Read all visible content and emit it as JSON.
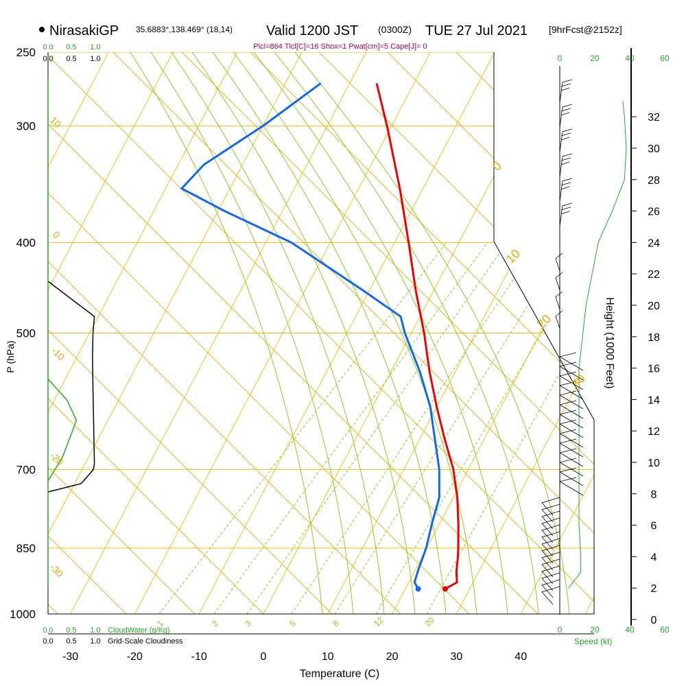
{
  "header": {
    "station": "NirasakiGP",
    "coords": "35.6883°,138.469° (18,14)",
    "valid": "Valid 1200 JST",
    "utc": "(0300Z)",
    "date": "TUE 27 Jul 2021",
    "fcst": "[9hrFcst@2152z]",
    "indices": "Plcl=864 Tlcl[C]=16 Shox=1 Pwat[cm]=5 Cape[J]= 0"
  },
  "colors": {
    "isobar": "#f5b800",
    "dry_adiabat": "#e8a800",
    "moist_adiabat": "#88cc22",
    "mixing_ratio": "#88cc22",
    "temperature": "#ee0000",
    "dewpoint": "#1166ee",
    "cloud_water": "#22aa22",
    "cloudiness": "#000000",
    "header_text": "#000000",
    "indices_text": "#aa0055",
    "green_label": "#22aa22"
  },
  "labels": {
    "cloud_scale_green": [
      "0.0",
      "0.5",
      "1.0"
    ],
    "cloud_scale_black": [
      "0.0",
      "0.5",
      "1.0"
    ],
    "cloudwater": "CloudWater (g/Kg)",
    "cloudiness": "Grid-Scale Cloudiness",
    "speed": "Speed (kt)",
    "speed_ticks": [
      "0",
      "20",
      "40",
      "60"
    ],
    "pressure_axis": "P (hPa)",
    "height_axis": "Height (1000 Feet)",
    "temp_axis": "Temperature (C)"
  },
  "chart_data": {
    "type": "skew-t",
    "pressure_ticks": [
      250,
      300,
      400,
      500,
      700,
      850,
      1000
    ],
    "temperature_ticks": [
      -30,
      -20,
      -10,
      0,
      10,
      20,
      30,
      40
    ],
    "height_ticks_kft": [
      0,
      2,
      4,
      6,
      8,
      10,
      12,
      14,
      16,
      18,
      20,
      22,
      24,
      26,
      28,
      30,
      32
    ],
    "mixing_ratio_labels": [
      "1",
      "2",
      "3",
      "5",
      "8",
      "12",
      "20"
    ],
    "dry_adiabat_labels": [
      "10",
      "0",
      "-10",
      "-20",
      "-30"
    ],
    "moist_adiabat_labels": [
      "0",
      "10",
      "20",
      "30"
    ],
    "temperature_profile": [
      {
        "p": 940,
        "t": 26.2
      },
      {
        "p": 925,
        "t": 27.5
      },
      {
        "p": 900,
        "t": 26.5
      },
      {
        "p": 870,
        "t": 25.6
      },
      {
        "p": 850,
        "t": 24.9
      },
      {
        "p": 800,
        "t": 22.9
      },
      {
        "p": 750,
        "t": 20.6
      },
      {
        "p": 700,
        "t": 17.7
      },
      {
        "p": 650,
        "t": 13.9
      },
      {
        "p": 600,
        "t": 10.0
      },
      {
        "p": 550,
        "t": 6.0
      },
      {
        "p": 500,
        "t": 2.0
      },
      {
        "p": 450,
        "t": -2.8
      },
      {
        "p": 400,
        "t": -7.8
      },
      {
        "p": 350,
        "t": -13.6
      },
      {
        "p": 300,
        "t": -20.7
      },
      {
        "p": 270,
        "t": -25.8
      }
    ],
    "dewpoint_profile": [
      {
        "p": 940,
        "t": 22.0
      },
      {
        "p": 925,
        "t": 20.9
      },
      {
        "p": 900,
        "t": 20.5
      },
      {
        "p": 850,
        "t": 19.9
      },
      {
        "p": 800,
        "t": 18.8
      },
      {
        "p": 750,
        "t": 17.8
      },
      {
        "p": 700,
        "t": 15.5
      },
      {
        "p": 600,
        "t": 9.0
      },
      {
        "p": 550,
        "t": 4.5
      },
      {
        "p": 500,
        "t": -1.0
      },
      {
        "p": 480,
        "t": -3.0
      },
      {
        "p": 450,
        "t": -11.0
      },
      {
        "p": 400,
        "t": -26.0
      },
      {
        "p": 370,
        "t": -39.0
      },
      {
        "p": 350,
        "t": -47.5
      },
      {
        "p": 330,
        "t": -46.0
      },
      {
        "p": 300,
        "t": -40.0
      },
      {
        "p": 270,
        "t": -34.5
      }
    ],
    "cloudiness_profile": [
      {
        "p": 440,
        "v": 0.0
      },
      {
        "p": 480,
        "v": 0.98
      },
      {
        "p": 500,
        "v": 0.95
      },
      {
        "p": 530,
        "v": 0.94
      },
      {
        "p": 575,
        "v": 0.95
      },
      {
        "p": 650,
        "v": 0.97
      },
      {
        "p": 690,
        "v": 0.98
      },
      {
        "p": 700,
        "v": 0.96
      },
      {
        "p": 725,
        "v": 0.7
      },
      {
        "p": 740,
        "v": 0.0
      }
    ],
    "cloudwater_profile": [
      {
        "p": 560,
        "v": 0.0
      },
      {
        "p": 590,
        "v": 0.4
      },
      {
        "p": 620,
        "v": 0.6
      },
      {
        "p": 650,
        "v": 0.45
      },
      {
        "p": 680,
        "v": 0.3
      },
      {
        "p": 720,
        "v": 0.0
      }
    ],
    "wind_speed_profile": [
      {
        "kft": 2.0,
        "kt": 5
      },
      {
        "kft": 3.0,
        "kt": 12
      },
      {
        "kft": 4.0,
        "kt": 12
      },
      {
        "kft": 6.0,
        "kt": 11
      },
      {
        "kft": 8.0,
        "kt": 11
      },
      {
        "kft": 12.0,
        "kt": 11
      },
      {
        "kft": 16.0,
        "kt": 11
      },
      {
        "kft": 20.0,
        "kt": 15
      },
      {
        "kft": 24.0,
        "kt": 22
      },
      {
        "kft": 26.0,
        "kt": 30
      },
      {
        "kft": 28.0,
        "kt": 37
      },
      {
        "kft": 30.0,
        "kt": 38
      },
      {
        "kft": 32.0,
        "kt": 37
      },
      {
        "kft": 33.0,
        "kt": 36
      }
    ]
  }
}
